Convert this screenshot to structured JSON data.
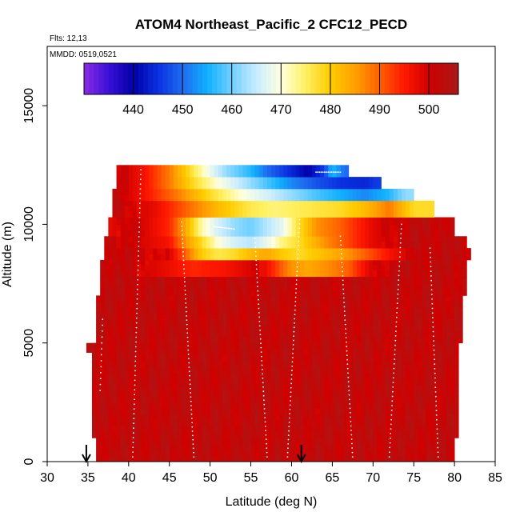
{
  "chart_data": {
    "type": "heatmap",
    "title": "ATOM4 Northeast_Pacific_2 CFC12_PECD",
    "flights_note": "Flts: 12,13",
    "dates_note": "MMDD: 0519,0521",
    "xlabel": "Latitude (deg N)",
    "ylabel": "Altitude (m)",
    "xlim": [
      30,
      85
    ],
    "ylim": [
      0,
      17500
    ],
    "x_ticks": [
      "30",
      "35",
      "40",
      "45",
      "50",
      "55",
      "60",
      "65",
      "70",
      "75",
      "80",
      "85"
    ],
    "y_ticks": [
      "0",
      "5000",
      "10000",
      "15000"
    ],
    "colorbar": {
      "range": [
        430,
        506
      ],
      "ticks": [
        "440",
        "450",
        "460",
        "470",
        "480",
        "490",
        "500"
      ],
      "stops": [
        {
          "value": 430,
          "color": "#8a2be2"
        },
        {
          "value": 435,
          "color": "#3a10d8"
        },
        {
          "value": 440,
          "color": "#0000a8"
        },
        {
          "value": 445,
          "color": "#0a30e0"
        },
        {
          "value": 450,
          "color": "#1e6cf0"
        },
        {
          "value": 455,
          "color": "#10b0ff"
        },
        {
          "value": 460,
          "color": "#70d0ff"
        },
        {
          "value": 465,
          "color": "#c8ecff"
        },
        {
          "value": 470,
          "color": "#ffffe0"
        },
        {
          "value": 475,
          "color": "#fff060"
        },
        {
          "value": 480,
          "color": "#ffcc00"
        },
        {
          "value": 485,
          "color": "#ffa000"
        },
        {
          "value": 490,
          "color": "#ff6000"
        },
        {
          "value": 495,
          "color": "#ff1800"
        },
        {
          "value": 500,
          "color": "#d00000"
        },
        {
          "value": 506,
          "color": "#a81818"
        }
      ]
    },
    "default_value": 502,
    "layers": [
      {
        "alt_bottom": 0,
        "alt_top": 1000,
        "lat_min": 36.0,
        "lat_max": 80.0,
        "values": []
      },
      {
        "alt_bottom": 1000,
        "alt_top": 5000,
        "lat_min": 35.5,
        "lat_max": 80.5,
        "values": []
      },
      {
        "alt_bottom": 4600,
        "alt_top": 5000,
        "lat_min": 34.8,
        "lat_max": 36.0,
        "values": []
      },
      {
        "alt_bottom": 5000,
        "alt_top": 7000,
        "lat_min": 36.0,
        "lat_max": 81.0,
        "values": []
      },
      {
        "alt_bottom": 7000,
        "alt_top": 7800,
        "lat_min": 36.5,
        "lat_max": 81.5,
        "values": []
      },
      {
        "alt_bottom": 7800,
        "alt_top": 8500,
        "lat_min": 36.5,
        "lat_max": 81.5,
        "values": [
          [
            38,
            502
          ],
          [
            44,
            498
          ],
          [
            48,
            494
          ],
          [
            52,
            496
          ],
          [
            56,
            500
          ],
          [
            60,
            486
          ],
          [
            62,
            484
          ],
          [
            64,
            486
          ],
          [
            67,
            490
          ],
          [
            70,
            500
          ],
          [
            74,
            502
          ]
        ]
      },
      {
        "alt_bottom": 8500,
        "alt_top": 9000,
        "lat_min": 37.0,
        "lat_max": 82.0,
        "values": [
          [
            38,
            502
          ],
          [
            45,
            499
          ],
          [
            47,
            490
          ],
          [
            49,
            480
          ],
          [
            51,
            476
          ],
          [
            53,
            478
          ],
          [
            55,
            482
          ],
          [
            57,
            484
          ],
          [
            59,
            480
          ],
          [
            61,
            478
          ],
          [
            64,
            482
          ],
          [
            67,
            486
          ],
          [
            69,
            490
          ],
          [
            72,
            496
          ],
          [
            76,
            502
          ]
        ]
      },
      {
        "alt_bottom": 9000,
        "alt_top": 9500,
        "lat_min": 37.0,
        "lat_max": 81.5,
        "values": [
          [
            38,
            502
          ],
          [
            45,
            496
          ],
          [
            47,
            486
          ],
          [
            49,
            478
          ],
          [
            51,
            470
          ],
          [
            53,
            466
          ],
          [
            55,
            464
          ],
          [
            57,
            468
          ],
          [
            59,
            474
          ],
          [
            61,
            478
          ],
          [
            64,
            486
          ],
          [
            67,
            492
          ],
          [
            70,
            498
          ],
          [
            74,
            502
          ]
        ]
      },
      {
        "alt_bottom": 9500,
        "alt_top": 10300,
        "lat_min": 37.5,
        "lat_max": 80.0,
        "values": [
          [
            38,
            498
          ],
          [
            40,
            502
          ],
          [
            45,
            494
          ],
          [
            47,
            484
          ],
          [
            49,
            472
          ],
          [
            51,
            466
          ],
          [
            53,
            462
          ],
          [
            55,
            460
          ],
          [
            57,
            464
          ],
          [
            59,
            468
          ],
          [
            61,
            478
          ],
          [
            63,
            486
          ],
          [
            66,
            490
          ],
          [
            70,
            498
          ],
          [
            74,
            502
          ]
        ]
      },
      {
        "alt_bottom": 10300,
        "alt_top": 11000,
        "lat_min": 38.0,
        "lat_max": 77.5,
        "values": [
          [
            38,
            502
          ],
          [
            43,
            498
          ],
          [
            47,
            490
          ],
          [
            51,
            482
          ],
          [
            55,
            476
          ],
          [
            58,
            474
          ],
          [
            62,
            476
          ],
          [
            66,
            478
          ],
          [
            69,
            482
          ],
          [
            72,
            488
          ],
          [
            75,
            478
          ]
        ]
      },
      {
        "alt_bottom": 11000,
        "alt_top": 11500,
        "lat_min": 38.0,
        "lat_max": 75.0,
        "values": [
          [
            38,
            502
          ],
          [
            42,
            496
          ],
          [
            46,
            488
          ],
          [
            50,
            478
          ],
          [
            54,
            470
          ],
          [
            57,
            466
          ],
          [
            60,
            462
          ],
          [
            63,
            458
          ],
          [
            66,
            455
          ],
          [
            69,
            452
          ],
          [
            72,
            456
          ],
          [
            74,
            462
          ]
        ]
      },
      {
        "alt_bottom": 11500,
        "alt_top": 12000,
        "lat_min": 38.5,
        "lat_max": 71.0,
        "values": [
          [
            38,
            502
          ],
          [
            42,
            496
          ],
          [
            45,
            488
          ],
          [
            48,
            478
          ],
          [
            51,
            470
          ],
          [
            54,
            464
          ],
          [
            57,
            458
          ],
          [
            60,
            452
          ],
          [
            63,
            448
          ],
          [
            66,
            445
          ],
          [
            69,
            444
          ],
          [
            70.5,
            446
          ]
        ]
      },
      {
        "alt_bottom": 12000,
        "alt_top": 12500,
        "lat_min": 38.5,
        "lat_max": 67.0,
        "values": [
          [
            38,
            502
          ],
          [
            42,
            496
          ],
          [
            45,
            488
          ],
          [
            48,
            476
          ],
          [
            50,
            468
          ],
          [
            52,
            462
          ],
          [
            55,
            456
          ],
          [
            57,
            450
          ],
          [
            60,
            444
          ],
          [
            62,
            440
          ],
          [
            64,
            446
          ],
          [
            65,
            456
          ],
          [
            66.5,
            450
          ]
        ]
      }
    ],
    "arrows_lat": [
      34.8,
      61.2
    ],
    "grid": false,
    "legend": "colorbar top, inside plot"
  }
}
